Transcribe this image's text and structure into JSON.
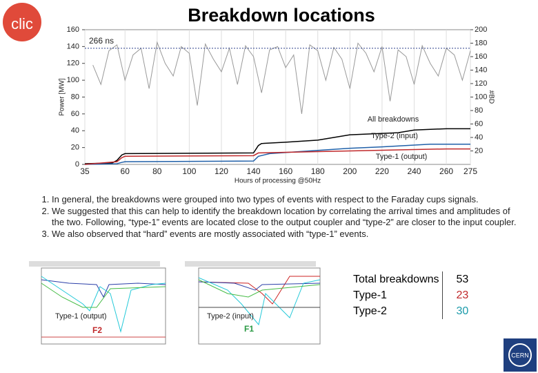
{
  "logos": {
    "clic": "clic",
    "cern": "CERN"
  },
  "chart_data": {
    "type": "line",
    "title": "Breakdown locations",
    "x_label": "Hours of processing @50Hz",
    "y_label": "Power [MW]",
    "y2_label": "#BD",
    "xlim": [
      35,
      275
    ],
    "xticks": [
      35,
      60,
      80,
      100,
      120,
      140,
      160,
      180,
      200,
      220,
      240,
      260,
      275
    ],
    "ylim": [
      0,
      160
    ],
    "yticks": [
      0,
      20,
      40,
      60,
      80,
      100,
      120,
      140,
      160
    ],
    "y2lim": [
      0,
      200
    ],
    "y2ticks": [
      20,
      40,
      60,
      80,
      100,
      120,
      140,
      160,
      180,
      200
    ],
    "annotations": [
      {
        "text": "266 ns",
        "y": 138
      }
    ],
    "series": [
      {
        "name": "Power",
        "color": "#999999",
        "axis": "y",
        "x": [
          40,
          45,
          50,
          55,
          60,
          65,
          70,
          75,
          80,
          85,
          90,
          95,
          100,
          105,
          110,
          115,
          120,
          125,
          130,
          135,
          140,
          145,
          150,
          155,
          160,
          165,
          170,
          175,
          180,
          185,
          190,
          195,
          200,
          205,
          210,
          215,
          220,
          225,
          230,
          235,
          240,
          245,
          250,
          255,
          260,
          265,
          270,
          275
        ],
        "values": [
          118,
          95,
          135,
          142,
          100,
          130,
          138,
          90,
          145,
          120,
          105,
          140,
          132,
          70,
          143,
          125,
          110,
          138,
          95,
          141,
          128,
          85,
          136,
          140,
          115,
          130,
          60,
          142,
          135,
          100,
          139,
          125,
          90,
          144,
          132,
          110,
          140,
          75,
          136,
          128,
          95,
          141,
          120,
          105,
          138,
          130,
          100,
          135
        ]
      },
      {
        "name": "All breakdowns",
        "color": "#000000",
        "axis": "y2",
        "x": [
          35,
          52,
          55,
          58,
          60,
          140,
          143,
          145,
          160,
          180,
          190,
          200,
          230,
          240,
          260,
          275
        ],
        "values": [
          1,
          2,
          6,
          14,
          16,
          17,
          28,
          31,
          33,
          36,
          40,
          44,
          47,
          51,
          53,
          53
        ]
      },
      {
        "name": "Type-2 (input)",
        "color": "#1f5fa8",
        "axis": "y2",
        "x": [
          35,
          55,
          58,
          60,
          140,
          143,
          150,
          200,
          220,
          250,
          275
        ],
        "values": [
          0,
          1,
          3,
          4,
          5,
          12,
          16,
          24,
          26,
          30,
          30
        ]
      },
      {
        "name": "Type-1 (output)",
        "color": "#c0282a",
        "axis": "y2",
        "x": [
          35,
          55,
          58,
          60,
          140,
          143,
          160,
          200,
          240,
          260,
          275
        ],
        "values": [
          0,
          4,
          10,
          12,
          13,
          17,
          18,
          20,
          22,
          23,
          23
        ]
      }
    ]
  },
  "list": [
    "In general, the breakdowns were grouped into two types of events with respect to the Faraday cups signals.",
    "We suggested that this can help to identify the breakdown location by correlating the arrival times and amplitudes of the two. Following, “type-1” events are located close to the output coupler and “type-2” are closer to the input coupler.",
    "We also observed that “hard” events are mostly associated with “type-1” events."
  ],
  "plots": [
    {
      "label": "Type-1 (output)",
      "tag": "F2"
    },
    {
      "label": "Type-2 (input)",
      "tag": "F1"
    }
  ],
  "table": {
    "rows": [
      [
        "Total breakdowns",
        "53"
      ],
      [
        "Type-1",
        "23"
      ],
      [
        "Type-2",
        "30"
      ]
    ]
  }
}
